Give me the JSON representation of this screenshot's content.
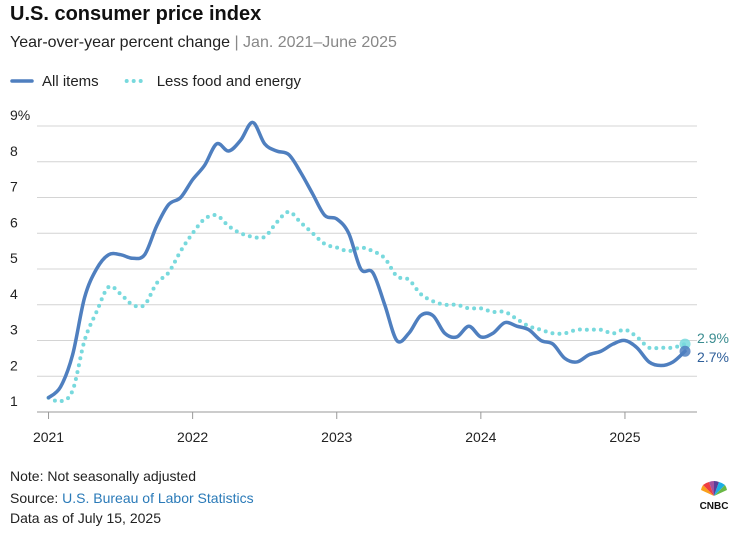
{
  "chart_data": {
    "type": "line",
    "title": "U.S. consumer price index",
    "subtitle": "Year-over-year percent change",
    "subtitle_range": "| Jan. 2021–June 2025",
    "x": [
      2021,
      2021.083,
      2021.167,
      2021.25,
      2021.333,
      2021.417,
      2021.5,
      2021.583,
      2021.667,
      2021.75,
      2021.833,
      2021.917,
      2022,
      2022.083,
      2022.167,
      2022.25,
      2022.333,
      2022.417,
      2022.5,
      2022.583,
      2022.667,
      2022.75,
      2022.833,
      2022.917,
      2023,
      2023.083,
      2023.167,
      2023.25,
      2023.333,
      2023.417,
      2023.5,
      2023.583,
      2023.667,
      2023.75,
      2023.833,
      2023.917,
      2024,
      2024.083,
      2024.167,
      2024.25,
      2024.333,
      2024.417,
      2024.5,
      2024.583,
      2024.667,
      2024.75,
      2024.833,
      2024.917,
      2025,
      2025.083,
      2025.167,
      2025.25,
      2025.333,
      2025.417
    ],
    "series": [
      {
        "name": "All items",
        "color": "#4f7fbf",
        "style": "solid",
        "values": [
          1.4,
          1.7,
          2.6,
          4.2,
          5.0,
          5.4,
          5.4,
          5.3,
          5.4,
          6.2,
          6.8,
          7.0,
          7.5,
          7.9,
          8.5,
          8.3,
          8.6,
          9.1,
          8.5,
          8.3,
          8.2,
          7.7,
          7.1,
          6.5,
          6.4,
          6.0,
          5.0,
          4.9,
          4.0,
          3.0,
          3.2,
          3.7,
          3.7,
          3.2,
          3.1,
          3.4,
          3.1,
          3.2,
          3.5,
          3.4,
          3.3,
          3.0,
          2.9,
          2.5,
          2.4,
          2.6,
          2.7,
          2.9,
          3.0,
          2.8,
          2.4,
          2.3,
          2.4,
          2.7
        ],
        "value_labels": [
          null,
          null,
          null,
          null,
          null,
          null,
          null,
          null,
          null,
          null,
          null,
          null,
          null,
          null,
          null,
          null,
          null,
          null,
          null,
          null,
          null,
          null,
          null,
          null,
          null,
          null,
          null,
          null,
          null,
          null,
          null,
          null,
          null,
          null,
          null,
          null,
          null,
          null,
          null,
          null,
          null,
          null,
          null,
          null,
          null,
          null,
          null,
          null,
          null,
          null,
          null,
          null,
          null,
          "2.7%"
        ]
      },
      {
        "name": "Less food and energy",
        "color": "#78d9dd",
        "style": "dotted",
        "values": [
          1.4,
          1.3,
          1.6,
          3.0,
          3.8,
          4.5,
          4.3,
          4.0,
          4.0,
          4.6,
          4.9,
          5.5,
          6.0,
          6.4,
          6.5,
          6.2,
          6.0,
          5.9,
          5.9,
          6.3,
          6.6,
          6.3,
          6.0,
          5.7,
          5.6,
          5.5,
          5.6,
          5.5,
          5.3,
          4.8,
          4.7,
          4.3,
          4.1,
          4.0,
          4.0,
          3.9,
          3.9,
          3.8,
          3.8,
          3.6,
          3.4,
          3.3,
          3.2,
          3.2,
          3.3,
          3.3,
          3.3,
          3.2,
          3.3,
          3.1,
          2.8,
          2.8,
          2.8,
          2.9
        ],
        "value_labels": [
          null,
          null,
          null,
          null,
          null,
          null,
          null,
          null,
          null,
          null,
          null,
          null,
          null,
          null,
          null,
          null,
          null,
          null,
          null,
          null,
          null,
          null,
          null,
          null,
          null,
          null,
          null,
          null,
          null,
          null,
          null,
          null,
          null,
          null,
          null,
          null,
          null,
          null,
          null,
          null,
          null,
          null,
          null,
          null,
          null,
          null,
          null,
          null,
          null,
          null,
          null,
          null,
          null,
          "2.9%"
        ]
      }
    ],
    "xlim": [
      2020.92,
      2025.5
    ],
    "xticks": [
      2021,
      2022,
      2023,
      2024,
      2025
    ],
    "ylim": [
      1,
      9
    ],
    "yticks": [
      1,
      2,
      3,
      4,
      5,
      6,
      7,
      8,
      {
        "value": 9,
        "label": "9%"
      }
    ],
    "grid": true,
    "legend": "top-left",
    "note": "Note: Not seasonally adjusted",
    "source_label": "Source:",
    "source": "U.S. Bureau of Labor Statistics",
    "date_note": "Data as of July 15, 2025",
    "logo": "CNBC"
  }
}
